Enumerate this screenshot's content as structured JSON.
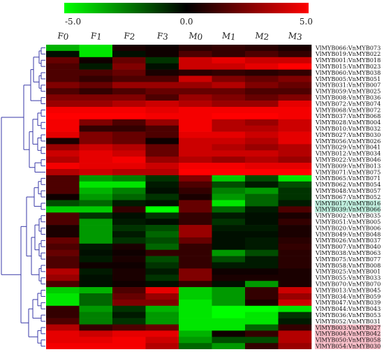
{
  "chart_data": {
    "type": "heatmap",
    "color_scale": {
      "min": -5.0,
      "mid": 0.0,
      "max": 5.0,
      "tick_labels": [
        "-5.0",
        "0.0",
        "5.0"
      ],
      "low_color": "#00ff00",
      "mid_color": "#000000",
      "high_color": "#ff0000"
    },
    "columns": [
      "F0",
      "F1",
      "F2",
      "F3",
      "M0",
      "M1",
      "M2",
      "M3"
    ],
    "rows": [
      "VlMYB066:VnMYB073",
      "VlMYB019:VnMYB022",
      "VlMYB001:VnMYB018",
      "VlMYB015:VnMYB023",
      "VlMYB060:VnMYB038",
      "VlMYB005:VnMYB051",
      "VlMYB031:VnMYB007",
      "VlMYB059:VnMYB025",
      "VlMYB008:VnMYB036",
      "VlMYB072:VnMYB074",
      "VlMYB068:VnMYB072",
      "VlMYB037:VnMYB068",
      "VlMYB028:VnMYB004",
      "VlMYB010:VnMYB032",
      "VlMYB027:VnMYB030",
      "VlMYB056:VnMYB026",
      "VlMYB029:VnMYB041",
      "VlMYB012:VnMYB034",
      "VlMYB022:VnMYB046",
      "VlMYB009:VnMYB013",
      "VlMYB071:VnMYB075",
      "VlMYB065:VnMYB071",
      "VlMYB062:VnMYB054",
      "VlMYB048:VnMYB057",
      "VlMYB067:VnMYB052",
      "VlMYB017:VnMYB016",
      "VlMYB039:VnMYB066",
      "VlMYB002:VnMYB035",
      "VlMYB051:VnMYB005",
      "VlMYB020:VnMYB006",
      "VlMYB049:VnMYB048",
      "VlMYB026:VnMYB037",
      "VlMYB007:VnMYB040",
      "VlMYB038:VnMYB063",
      "VlMYB075:VnMYB077",
      "VlMYB058:VnMYB008",
      "VlMYB025:VnMYB001",
      "VlMYB055:VnMYB033",
      "VlMYB070:VnMYB070",
      "VlMYB013:VnMYB045",
      "VlMYB034:VnMYB059",
      "VlMYB047:VnMYB039",
      "VlMYB044:VnMYB043",
      "VlMYB036:VnMYB053",
      "VlMYB052:VnMYB031",
      "VlMYB003:VnMYB027",
      "VlMYB004:VnMYB042",
      "VlMYB050:VnMYB058",
      "VlMYB054:VnMYB030"
    ],
    "highlighted_rows": [
      {
        "row": "VlMYB017:VnMYB016",
        "color": "#bfeedd"
      },
      {
        "row": "VlMYB039:VnMYB066",
        "color": "#bfeedd"
      },
      {
        "row": "VlMYB003:VnMYB027",
        "color": "#f6bcc6"
      },
      {
        "row": "VlMYB004:VnMYB042",
        "color": "#f6bcc6"
      },
      {
        "row": "VlMYB050:VnMYB058",
        "color": "#f6bcc6"
      },
      {
        "row": "VlMYB054:VnMYB030",
        "color": "#f6bcc6"
      }
    ],
    "values": [
      [
        -3.5,
        -4.5,
        0.5,
        0.3,
        0.8,
        1.0,
        0.8,
        0.5
      ],
      [
        -0.3,
        -4.5,
        -0.3,
        0.3,
        1.5,
        1.0,
        1.5,
        1.0
      ],
      [
        2.0,
        0.3,
        2.0,
        -1.0,
        4.0,
        4.5,
        4.0,
        4.0
      ],
      [
        1.5,
        -0.5,
        2.5,
        -0.3,
        4.0,
        4.0,
        4.5,
        5.0
      ],
      [
        1.5,
        1.5,
        2.0,
        0.5,
        0.8,
        1.0,
        0.8,
        1.0
      ],
      [
        1.5,
        1.0,
        1.5,
        1.5,
        4.0,
        2.5,
        2.0,
        2.5
      ],
      [
        2.5,
        2.0,
        3.0,
        3.0,
        3.0,
        3.5,
        2.5,
        2.0
      ],
      [
        1.5,
        1.0,
        1.5,
        2.0,
        2.0,
        2.0,
        1.5,
        1.5
      ],
      [
        2.5,
        2.5,
        2.5,
        1.5,
        3.0,
        2.5,
        2.0,
        2.5
      ],
      [
        3.0,
        3.0,
        3.5,
        4.0,
        3.5,
        3.0,
        3.0,
        4.5
      ],
      [
        4.8,
        4.8,
        4.8,
        4.5,
        4.8,
        4.8,
        4.8,
        4.8
      ],
      [
        5.0,
        5.0,
        5.0,
        4.8,
        4.8,
        5.0,
        5.0,
        4.8
      ],
      [
        4.8,
        2.5,
        1.5,
        3.0,
        4.8,
        3.5,
        3.0,
        4.0
      ],
      [
        4.8,
        1.0,
        1.0,
        1.5,
        4.8,
        3.5,
        3.5,
        4.0
      ],
      [
        4.5,
        2.5,
        2.0,
        1.5,
        4.5,
        4.5,
        4.0,
        4.5
      ],
      [
        0.5,
        2.5,
        2.0,
        0.3,
        4.0,
        4.0,
        3.5,
        4.5
      ],
      [
        3.0,
        4.0,
        3.5,
        2.0,
        4.0,
        3.5,
        3.0,
        3.5
      ],
      [
        4.0,
        4.5,
        4.0,
        2.0,
        4.0,
        4.0,
        4.0,
        3.5
      ],
      [
        3.5,
        4.5,
        4.8,
        3.0,
        3.5,
        3.0,
        3.5,
        3.0
      ],
      [
        4.8,
        4.5,
        4.5,
        4.0,
        4.8,
        4.8,
        4.5,
        4.5
      ],
      [
        3.5,
        4.0,
        3.5,
        3.5,
        5.0,
        5.0,
        5.0,
        5.0
      ],
      [
        1.5,
        -3.0,
        -2.5,
        -1.0,
        2.5,
        -4.0,
        -1.5,
        -4.5
      ],
      [
        1.5,
        -4.5,
        -4.5,
        -0.5,
        1.5,
        -1.5,
        -0.5,
        -1.5
      ],
      [
        1.5,
        -3.5,
        -2.5,
        -0.3,
        1.0,
        -2.5,
        -3.0,
        -1.0
      ],
      [
        0.3,
        -3.0,
        -2.0,
        -1.0,
        0.5,
        -3.0,
        -2.0,
        -1.0
      ],
      [
        -1.5,
        -2.0,
        -0.5,
        -0.3,
        2.0,
        -4.5,
        -2.0,
        -0.5
      ],
      [
        -4.0,
        -4.0,
        1.0,
        -5.0,
        2.0,
        -2.0,
        -0.5,
        1.5
      ],
      [
        1.5,
        -1.0,
        -0.3,
        -1.0,
        1.0,
        -0.5,
        -0.3,
        0.5
      ],
      [
        1.5,
        -3.0,
        -0.5,
        -0.3,
        1.0,
        -1.0,
        -0.3,
        1.0
      ],
      [
        0.5,
        -3.0,
        -1.0,
        -1.5,
        3.0,
        -0.5,
        -0.5,
        0.5
      ],
      [
        0.5,
        -3.0,
        -0.5,
        -2.0,
        3.0,
        -0.3,
        -0.3,
        0.5
      ],
      [
        2.0,
        -3.0,
        -1.0,
        -1.5,
        2.0,
        -0.3,
        -0.5,
        0.8
      ],
      [
        1.5,
        -0.5,
        0.5,
        -2.0,
        1.0,
        -0.3,
        -0.5,
        1.0
      ],
      [
        2.0,
        -0.3,
        0.3,
        1.0,
        1.0,
        -3.0,
        -1.5,
        0.8
      ],
      [
        1.5,
        -0.5,
        0.5,
        -1.5,
        1.0,
        -1.5,
        -0.5,
        0.8
      ],
      [
        1.5,
        0.3,
        0.3,
        -1.0,
        1.0,
        -0.5,
        -0.5,
        0.8
      ],
      [
        3.5,
        -0.5,
        0.5,
        -0.5,
        2.5,
        0.3,
        0.3,
        0.5
      ],
      [
        3.0,
        -0.3,
        0.5,
        -1.0,
        2.5,
        0.5,
        0.5,
        0.5
      ],
      [
        1.5,
        -0.3,
        0.3,
        -0.3,
        1.0,
        -0.3,
        -3.0,
        0.5
      ],
      [
        -4.0,
        -3.5,
        1.5,
        4.5,
        -4.0,
        -3.0,
        1.0,
        4.0
      ],
      [
        -4.5,
        -2.0,
        2.0,
        3.0,
        -4.0,
        -3.0,
        1.0,
        3.0
      ],
      [
        -4.5,
        -2.0,
        2.5,
        2.5,
        -4.5,
        -3.0,
        0.5,
        4.0
      ],
      [
        1.0,
        -3.0,
        -1.0,
        -3.5,
        -4.5,
        -5.0,
        -5.0,
        -4.5
      ],
      [
        1.0,
        -2.5,
        -0.5,
        -3.0,
        -4.5,
        -5.0,
        -4.5,
        -1.0
      ],
      [
        1.5,
        -2.5,
        -1.0,
        -3.0,
        -4.5,
        -4.5,
        -4.5,
        -0.5
      ],
      [
        3.5,
        1.0,
        1.5,
        2.0,
        -4.5,
        -4.5,
        -2.0,
        1.0
      ],
      [
        4.5,
        4.0,
        4.5,
        4.5,
        -3.5,
        0.3,
        1.0,
        3.5
      ],
      [
        4.5,
        4.5,
        4.8,
        4.0,
        -3.0,
        -1.5,
        -1.5,
        3.5
      ],
      [
        4.8,
        4.8,
        4.8,
        3.5,
        -2.0,
        -3.0,
        1.0,
        3.0
      ]
    ],
    "dendrogram": {
      "leaf_order": "rows",
      "clusters": [
        [
          0,
          1
        ],
        [
          2,
          3
        ],
        [
          4,
          5
        ],
        [
          6,
          7
        ],
        [
          8,
          9
        ],
        [
          10,
          11
        ],
        [
          12,
          13
        ],
        [
          14,
          15
        ],
        [
          16,
          17
        ],
        [
          18,
          19
        ],
        [
          21,
          22
        ],
        [
          23,
          24
        ],
        [
          25,
          26
        ],
        [
          27,
          28
        ],
        [
          29,
          30
        ],
        [
          31,
          32
        ],
        [
          33,
          34
        ],
        [
          35,
          36
        ],
        [
          37,
          38
        ],
        [
          39,
          40
        ],
        [
          41,
          42
        ],
        [
          43,
          44
        ],
        [
          45,
          46
        ],
        [
          47,
          48
        ]
      ]
    }
  }
}
